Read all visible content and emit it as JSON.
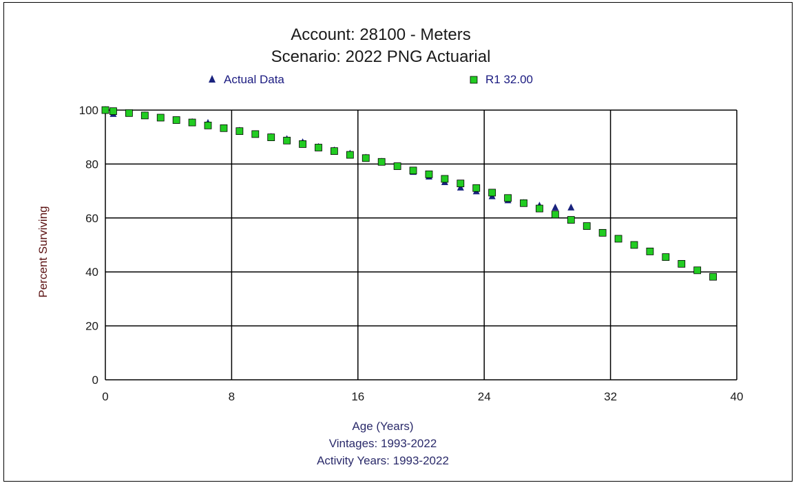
{
  "chart_data": {
    "type": "scatter",
    "title": "Account: 28100 - Meters",
    "subtitle": "Scenario: 2022 PNG Actuarial",
    "xlabel": "Age (Years)",
    "xlabel_lines": [
      "Vintages: 1993-2022",
      "Activity Years: 1993-2022"
    ],
    "ylabel": "Percent Surviving",
    "xlim": [
      0,
      40
    ],
    "ylim": [
      0,
      100
    ],
    "x_ticks": [
      0,
      8,
      16,
      24,
      32,
      40
    ],
    "y_ticks": [
      0,
      20,
      40,
      60,
      80,
      100
    ],
    "grid": true,
    "legend_position": "top",
    "series": [
      {
        "name": "Actual Data",
        "marker": "triangle",
        "color": "#1a237e",
        "x": [
          0,
          0.5,
          1.5,
          2.5,
          3.5,
          4.5,
          5.5,
          6.5,
          7.5,
          8.5,
          9.5,
          10.5,
          11.5,
          12.5,
          13.5,
          14.5,
          15.5,
          16.5,
          17.5,
          18.5,
          19.5,
          20.5,
          21.5,
          22.5,
          23.5,
          24.5,
          25.5,
          26.5,
          27.5,
          28.5,
          29.5
        ],
        "y": [
          100,
          98.5,
          98.8,
          98.0,
          97.0,
          96.2,
          95.5,
          95.2,
          93.2,
          92.3,
          91.0,
          90.0,
          89.2,
          88.0,
          86.3,
          85.0,
          83.8,
          82.3,
          80.8,
          79.0,
          77.0,
          75.3,
          73.2,
          71.2,
          69.8,
          68.0,
          66.5,
          65.5,
          64.5,
          63.8,
          63.8
        ]
      },
      {
        "name": "R1 32.00",
        "marker": "square",
        "color": "#22cc22",
        "x": [
          0,
          0.5,
          1.5,
          2.5,
          3.5,
          4.5,
          5.5,
          6.5,
          7.5,
          8.5,
          9.5,
          10.5,
          11.5,
          12.5,
          13.5,
          14.5,
          15.5,
          16.5,
          17.5,
          18.5,
          19.5,
          20.5,
          21.5,
          22.5,
          23.5,
          24.5,
          25.5,
          26.5,
          27.5,
          28.5,
          29.5,
          30.5,
          31.5,
          32.5,
          33.5,
          34.5,
          35.5,
          36.5,
          37.5,
          38.5
        ],
        "y": [
          100,
          99.6,
          98.9,
          98.0,
          97.2,
          96.3,
          95.4,
          94.3,
          93.3,
          92.2,
          91.1,
          89.9,
          88.7,
          87.4,
          86.1,
          84.8,
          83.4,
          82.2,
          80.8,
          79.2,
          77.6,
          76.2,
          74.5,
          72.8,
          71.1,
          69.4,
          67.4,
          65.5,
          63.5,
          61.3,
          59.3,
          57.0,
          54.5,
          52.3,
          50.0,
          47.6,
          45.5,
          43.0,
          40.6,
          38.2
        ]
      }
    ]
  }
}
